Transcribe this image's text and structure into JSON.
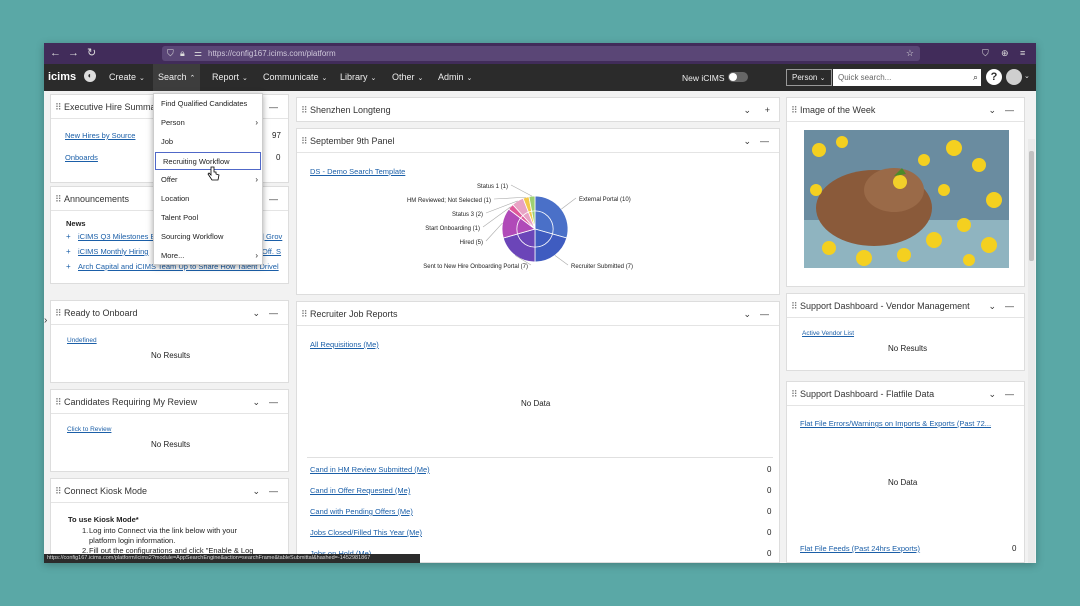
{
  "browser": {
    "url": "https://config167.icims.com/platform",
    "back": "←",
    "forward": "→",
    "reload": "↻"
  },
  "app": {
    "logo": "icims",
    "nav": [
      "Create",
      "Search",
      "Report",
      "Communicate",
      "Library",
      "Other",
      "Admin"
    ],
    "new_icims": "New iCIMS",
    "person_select": "Person",
    "quick_search_placeholder": "Quick search...",
    "help": "?"
  },
  "search_menu": {
    "items": [
      "Find Qualified Candidates",
      "Person",
      "Job",
      "Recruiting Workflow",
      "Offer",
      "Location",
      "Talent Pool",
      "Sourcing Workflow",
      "More..."
    ]
  },
  "exec_hire": {
    "title": "Executive Hire Summar",
    "rows": [
      {
        "label": "New Hires by Source",
        "value": "97"
      },
      {
        "label": "Onboards",
        "value": "0"
      }
    ]
  },
  "announcements": {
    "title": "Announcements",
    "news": "News",
    "items": [
      "iCIMS Q3 Milestones B",
      "iCIMS Monthly Hiring",
      "Arch Capital and iCIMS Team Up to Share How Talent Drivel"
    ],
    "frag1": "| Grov",
    "frag2": "Off. S"
  },
  "ready_onboard": {
    "title": "Ready to Onboard",
    "link": "Undefined",
    "empty": "No Results"
  },
  "cand_review": {
    "title": "Candidates Requiring My Review",
    "link": "Click to Review",
    "empty": "No Results"
  },
  "kiosk": {
    "title": "Connect Kiosk Mode",
    "heading": "To use Kiosk Mode*",
    "steps": [
      "Log into Connect via the link below with your platform login information.",
      "Fill out the configurations and click \"Enable & Log"
    ]
  },
  "shenzhen": {
    "title": "Shenzhen Longteng"
  },
  "sept_panel": {
    "title": "September 9th Panel",
    "link": "DS - Demo Search Template"
  },
  "chart_data": {
    "type": "pie",
    "categories": [
      "External Portal",
      "Recruiter Submitted",
      "Sent to New Hire Onboarding Portal",
      "Hired",
      "Start Onboarding",
      "Status 3",
      "HM Reviewed; Not Selected",
      "Status 1"
    ],
    "values": [
      10,
      7,
      7,
      5,
      1,
      2,
      1,
      1
    ],
    "labels": [
      "External Portal (10)",
      "Recruiter Submitted (7)",
      "Sent to New Hire Onboarding Portal (7)",
      "Hired (5)",
      "Start Onboarding (1)",
      "Status 3 (2)",
      "HM Reviewed; Not Selected (1)",
      "Status 1 (1)"
    ],
    "colors": [
      "#4a70c8",
      "#3f5cc0",
      "#6b45b8",
      "#b04ab8",
      "#e0589a",
      "#e8a2c4",
      "#f3c84a",
      "#9ed072"
    ]
  },
  "recruiter_jobs": {
    "title": "Recruiter Job Reports",
    "link": "All Requisitions (Me)",
    "nodata": "No Data",
    "rows": [
      {
        "label": "Cand in HM Review Submitted (Me)",
        "value": "0"
      },
      {
        "label": "Cand in Offer Requested (Me)",
        "value": "0"
      },
      {
        "label": "Cand with Pending Offers (Me)",
        "value": "0"
      },
      {
        "label": "Jobs Closed/Filled This Year (Me)",
        "value": "0"
      },
      {
        "label": "Jobs on Hold (Me)",
        "value": "0"
      }
    ]
  },
  "image_week": {
    "title": "Image of the Week"
  },
  "vendor": {
    "title": "Support Dashboard - Vendor Management",
    "link": "Active Vendor List",
    "empty": "No Results"
  },
  "flatfile": {
    "title": "Support Dashboard - Flatfile Data",
    "link": "Flat File Errors/Warnings on Imports & Exports (Past 72...",
    "nodata": "No Data",
    "feeds": "Flat File Feeds (Past 24hrs Exports)",
    "feeds_value": "0"
  },
  "status_url": "https://config167.icims.com/platform/icims2?module=AppSearchEngine&action=searchFrame&tableSubmittal&hashed=-1452981867"
}
